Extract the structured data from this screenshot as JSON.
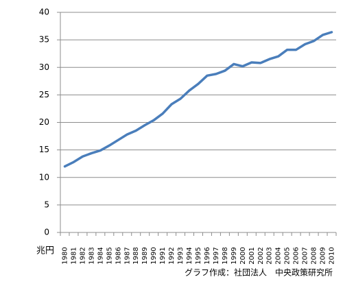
{
  "chart_data": {
    "type": "line",
    "x": [
      "1980",
      "1981",
      "1982",
      "1983",
      "1984",
      "1985",
      "1986",
      "1987",
      "1988",
      "1989",
      "1990",
      "1991",
      "1992",
      "1993",
      "1994",
      "1995",
      "1996",
      "1997",
      "1998",
      "1999",
      "2000",
      "2001",
      "2002",
      "2003",
      "2004",
      "2005",
      "2006",
      "2007",
      "2008",
      "2009",
      "2010"
    ],
    "values": [
      12.0,
      12.8,
      13.8,
      14.4,
      14.9,
      15.8,
      16.8,
      17.8,
      18.5,
      19.5,
      20.4,
      21.6,
      23.3,
      24.3,
      25.8,
      27.0,
      28.5,
      28.8,
      29.4,
      30.6,
      30.2,
      30.9,
      30.8,
      31.5,
      32.0,
      33.2,
      33.2,
      34.2,
      34.8,
      35.9,
      36.4
    ],
    "color": "#4a7ebb",
    "ylim": [
      0,
      40
    ],
    "yticks": [
      0,
      5,
      10,
      15,
      20,
      25,
      30,
      35,
      40
    ],
    "grid": true,
    "y_label": "兆円",
    "note": "グラフ作成：社団法人　中央政策研究所"
  }
}
